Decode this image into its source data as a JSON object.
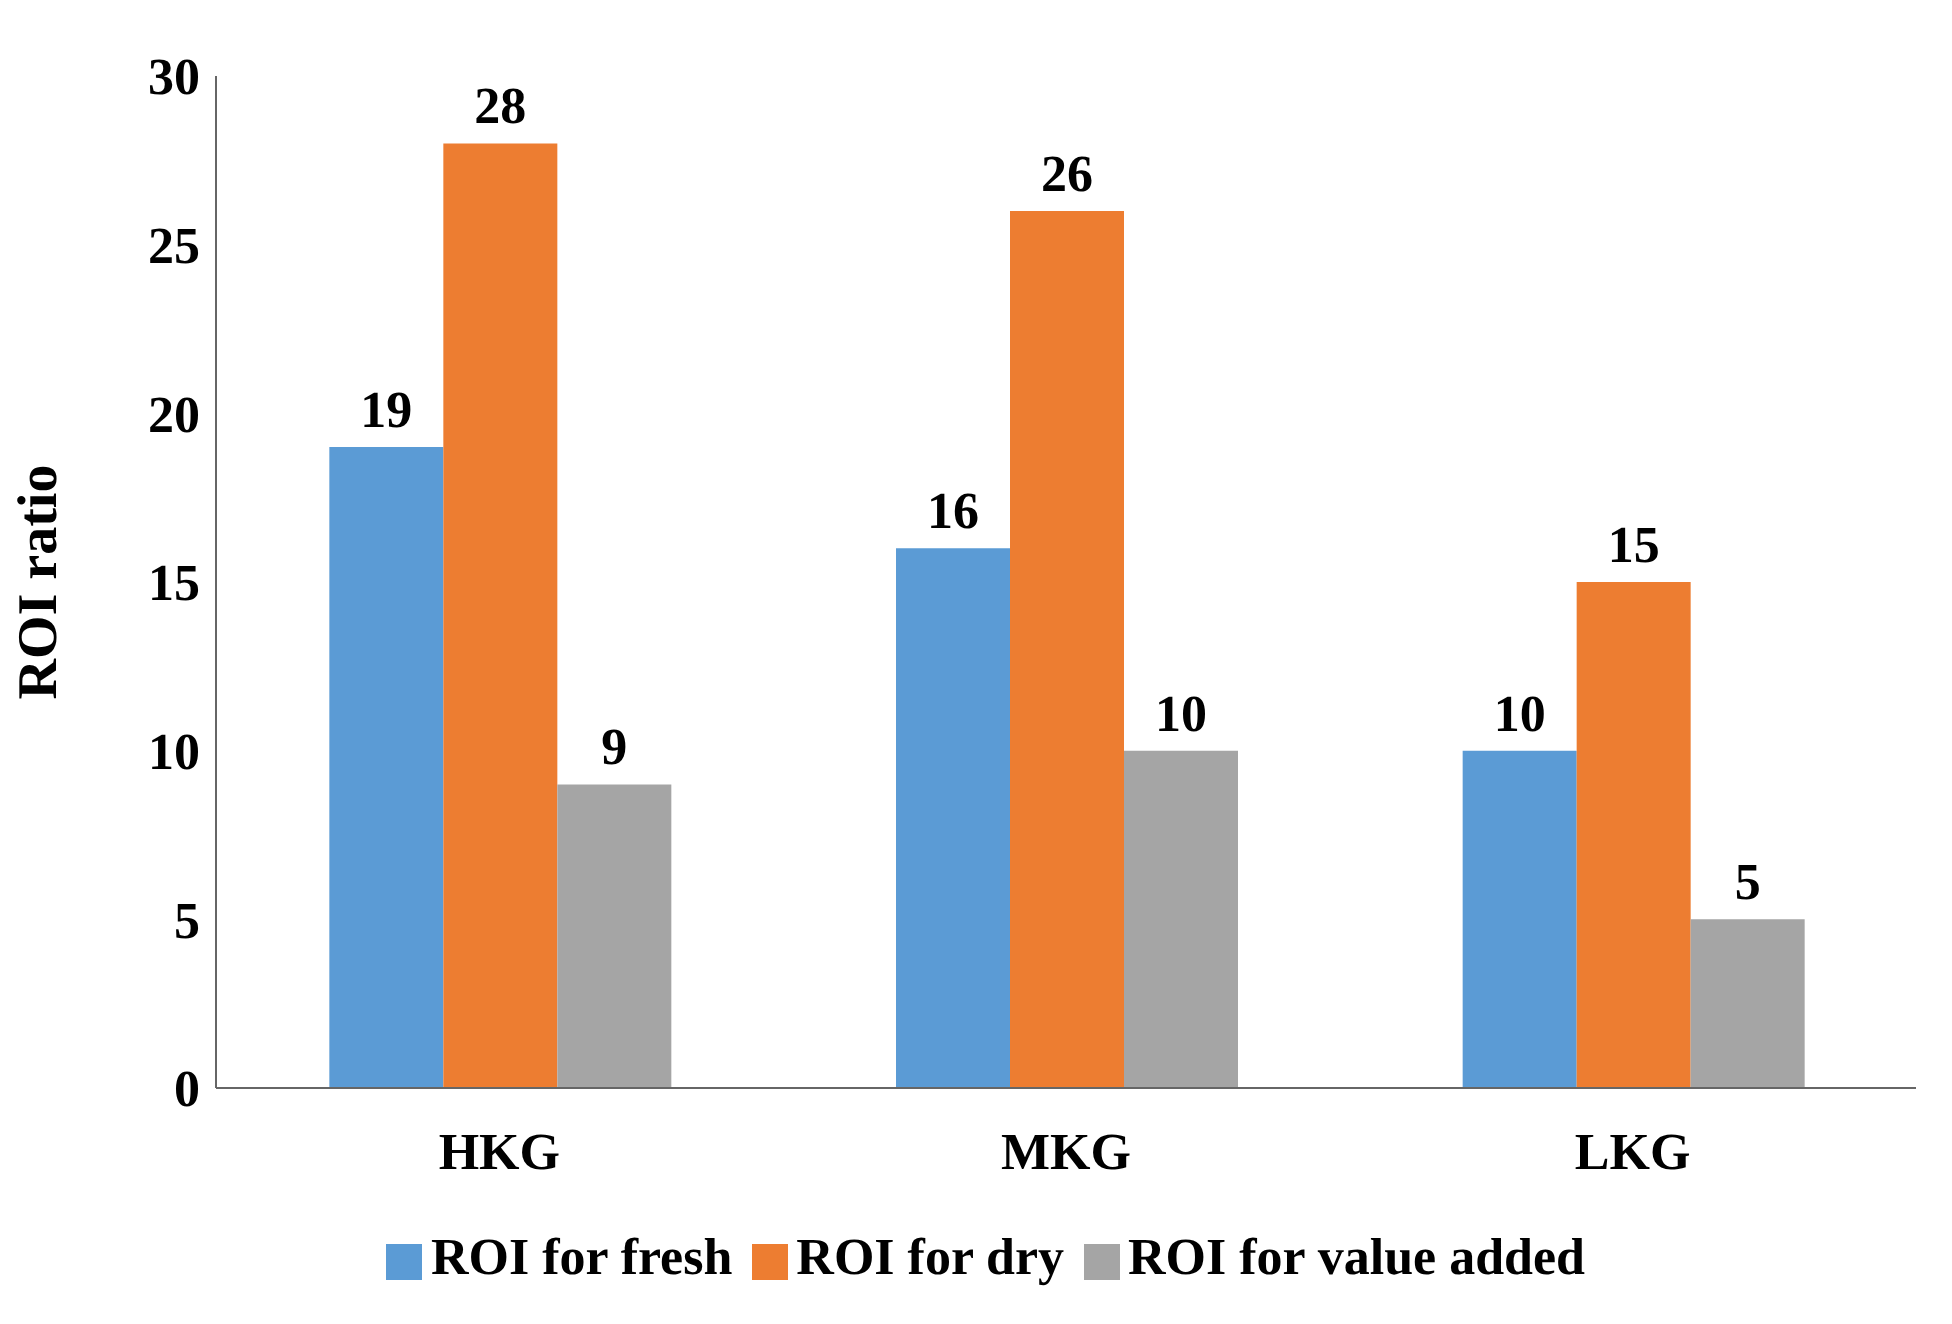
{
  "chart_data": {
    "type": "bar",
    "ylabel": "ROI ratio",
    "categories": [
      "HKG",
      "MKG",
      "LKG"
    ],
    "series": [
      {
        "name": "ROI for fresh",
        "color": "#5b9bd5",
        "values": [
          19,
          16,
          10
        ]
      },
      {
        "name": "ROI for dry",
        "color": "#ed7d31",
        "values": [
          28,
          26,
          15
        ]
      },
      {
        "name": "ROI for value added",
        "color": "#a5a5a5",
        "values": [
          9,
          10,
          5
        ]
      }
    ],
    "ylim": [
      0,
      30
    ],
    "yticks": [
      0,
      5,
      10,
      15,
      20,
      25,
      30
    ],
    "grid": false,
    "legend": "bottom",
    "data_labels": true
  }
}
